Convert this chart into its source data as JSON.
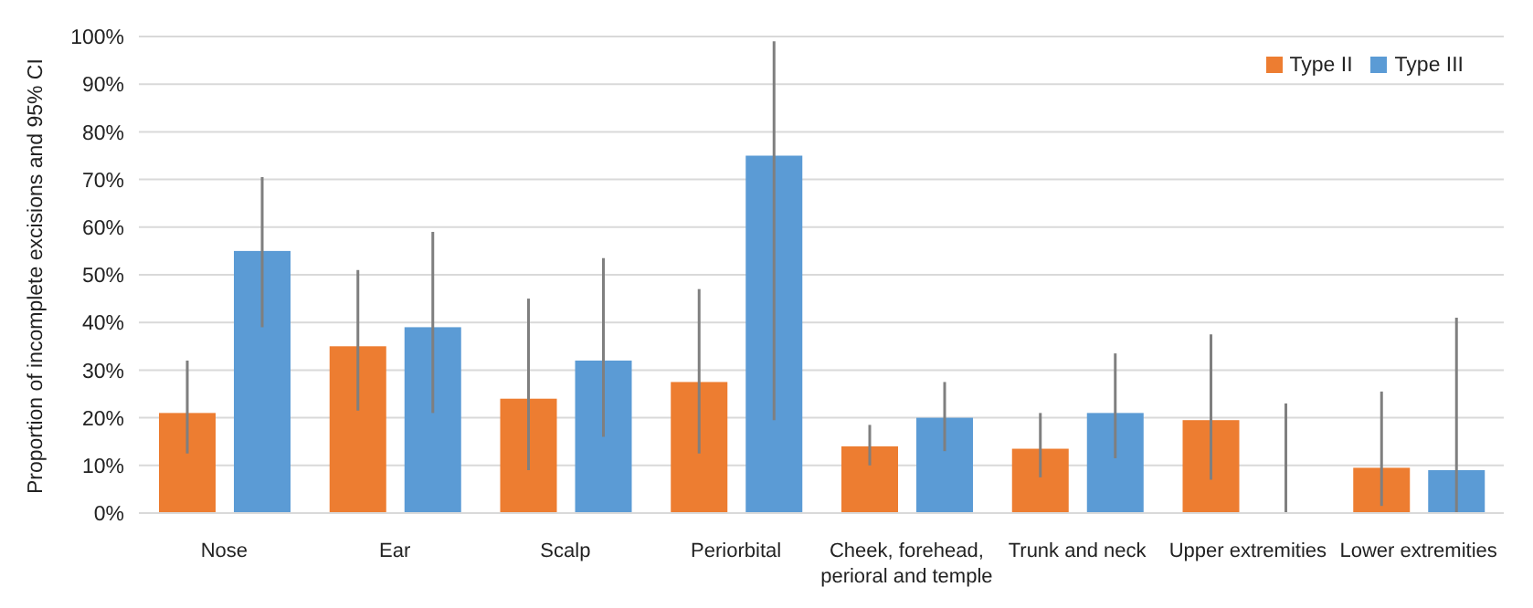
{
  "chart_data": {
    "type": "bar",
    "ylabel": "Proportion of incomplete excisions and 95% CI",
    "categories": [
      "Nose",
      "Ear",
      "Scalp",
      "Periorbital",
      "Cheek, forehead, perioral and temple",
      "Trunk and neck",
      "Upper extremities",
      "Lower extremities"
    ],
    "series": [
      {
        "name": "Type II",
        "color": "#ed7d31",
        "values": [
          21,
          35,
          24,
          27.5,
          14,
          13.5,
          19.5,
          9.5
        ],
        "errors": [
          [
            12.5,
            32
          ],
          [
            21.5,
            51
          ],
          [
            9,
            45
          ],
          [
            12.5,
            47
          ],
          [
            10,
            18.5
          ],
          [
            7.5,
            21
          ],
          [
            7,
            37.5
          ],
          [
            1.5,
            25.5
          ]
        ]
      },
      {
        "name": "Type III",
        "color": "#5b9bd5",
        "values": [
          55,
          39,
          32,
          75,
          20,
          21,
          0,
          9
        ],
        "errors": [
          [
            39,
            70.5
          ],
          [
            21,
            59
          ],
          [
            16,
            53.5
          ],
          [
            19.5,
            99
          ],
          [
            13,
            27.5
          ],
          [
            11.5,
            33.5
          ],
          [
            0,
            23
          ],
          [
            0,
            41
          ]
        ]
      }
    ],
    "ylim": [
      0,
      100
    ],
    "yticks": [
      {
        "value": 0,
        "label": "0%"
      },
      {
        "value": 10,
        "label": "10%"
      },
      {
        "value": 20,
        "label": "20%"
      },
      {
        "value": 30,
        "label": "30%"
      },
      {
        "value": 40,
        "label": "40%"
      },
      {
        "value": 50,
        "label": "50%"
      },
      {
        "value": 60,
        "label": "60%"
      },
      {
        "value": 70,
        "label": "70%"
      },
      {
        "value": 80,
        "label": "80%"
      },
      {
        "value": 90,
        "label": "90%"
      },
      {
        "value": 100,
        "label": "100%"
      }
    ],
    "grid": "y",
    "legend": "top right"
  }
}
